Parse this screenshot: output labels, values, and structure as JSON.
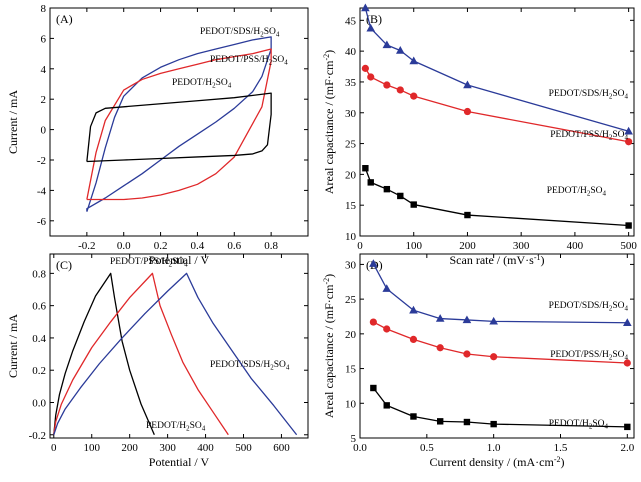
{
  "chart_data": [
    {
      "panel": "(A)",
      "type": "line",
      "xlabel": "Potential / V",
      "ylabel": "Current / mA",
      "xlim": [
        -0.4,
        1.0
      ],
      "ylim": [
        -7,
        8
      ],
      "xticks": [
        "-0.2",
        "0.0",
        "0.2",
        "0.4",
        "0.6",
        "0.8"
      ],
      "yticks": [
        "-6",
        "-4",
        "-2",
        "0",
        "2",
        "4",
        "6",
        "8"
      ],
      "series": [
        {
          "name": "PEDOT/SDS/H2SO4",
          "color": "#2b3b99",
          "x": [
            -0.2,
            -0.15,
            -0.1,
            -0.05,
            0.0,
            0.1,
            0.2,
            0.3,
            0.4,
            0.5,
            0.6,
            0.7,
            0.8,
            0.8,
            0.75,
            0.7,
            0.6,
            0.5,
            0.4,
            0.3,
            0.2,
            0.1,
            0.0,
            -0.1,
            -0.2,
            -0.2
          ],
          "y": [
            -5.4,
            -3.5,
            -1.2,
            0.8,
            2.2,
            3.4,
            4.1,
            4.6,
            5.0,
            5.3,
            5.6,
            5.9,
            6.1,
            5.3,
            3.5,
            2.5,
            1.4,
            0.5,
            -0.3,
            -1.1,
            -2.0,
            -2.9,
            -3.7,
            -4.5,
            -5.2,
            -5.4
          ]
        },
        {
          "name": "PEDOT/PSS/H2SO4",
          "color": "#e0282a",
          "x": [
            -0.2,
            -0.15,
            -0.1,
            0.0,
            0.1,
            0.2,
            0.3,
            0.4,
            0.5,
            0.6,
            0.7,
            0.8,
            0.8,
            0.75,
            0.7,
            0.6,
            0.5,
            0.4,
            0.3,
            0.2,
            0.1,
            0.0,
            -0.1,
            -0.2,
            -0.2
          ],
          "y": [
            -4.6,
            -1.5,
            0.6,
            2.6,
            3.3,
            3.7,
            4.0,
            4.3,
            4.6,
            4.8,
            5.0,
            5.3,
            4.5,
            1.5,
            0.4,
            -1.8,
            -2.9,
            -3.6,
            -4.0,
            -4.3,
            -4.5,
            -4.6,
            -4.6,
            -4.6,
            -4.6
          ],
          "label": "PEDOT/PSS/H2SO4"
        },
        {
          "name": "PEDOT/H2SO4",
          "color": "#000000",
          "x": [
            -0.2,
            -0.18,
            -0.15,
            -0.1,
            0.0,
            0.2,
            0.4,
            0.6,
            0.8,
            0.8,
            0.78,
            0.75,
            0.7,
            0.6,
            0.4,
            0.2,
            0.0,
            -0.2,
            -0.2
          ],
          "y": [
            -2.1,
            0.2,
            1.1,
            1.4,
            1.5,
            1.7,
            1.9,
            2.1,
            2.4,
            1.0,
            -1.0,
            -1.4,
            -1.6,
            -1.7,
            -1.8,
            -1.9,
            -2.0,
            -2.1,
            -2.1
          ]
        }
      ],
      "annotations": [
        "PEDOT/SDS/H",
        "2",
        "SO",
        "4",
        "PEDOT/PSS/H",
        "2",
        "SO",
        "4",
        "PEDOT/H",
        "2",
        "SO",
        "4"
      ]
    },
    {
      "panel": "(B)",
      "type": "line",
      "xlabel": "Scan rate / (mV·s",
      "xlabel_sup": "-1",
      "xlabel_end": ")",
      "ylabel": "Areal capacitance / (mF·cm",
      "ylabel_sup": "-2",
      "ylabel_end": ")",
      "xlim": [
        0,
        510
      ],
      "ylim": [
        10,
        47
      ],
      "xticks": [
        "0",
        "100",
        "200",
        "300",
        "400",
        "500"
      ],
      "yticks": [
        "10",
        "15",
        "20",
        "25",
        "30",
        "35",
        "40",
        "45"
      ],
      "x": [
        10,
        20,
        50,
        75,
        100,
        200,
        500
      ],
      "series": [
        {
          "name": "PEDOT/SDS/H2SO4",
          "color": "#2b3b99",
          "marker": "triangle",
          "values": [
            47.0,
            43.7,
            41.0,
            40.1,
            38.4,
            34.5,
            27.0
          ]
        },
        {
          "name": "PEDOT/PSS/H2SO4",
          "color": "#e0282a",
          "marker": "circle",
          "values": [
            37.2,
            35.8,
            34.5,
            33.7,
            32.7,
            30.2,
            25.3
          ]
        },
        {
          "name": "PEDOT/H2SO4",
          "color": "#000000",
          "marker": "square",
          "values": [
            21.0,
            18.7,
            17.6,
            16.5,
            15.1,
            13.4,
            11.7
          ]
        }
      ],
      "annotations": [
        "PEDOT/SDS/H",
        "2",
        "SO",
        "4",
        "PEDOT/PSS/H",
        "2",
        "SO",
        "4",
        "PEDOT/H",
        "2",
        "SO",
        "4"
      ]
    },
    {
      "panel": "(C)",
      "type": "line",
      "xlabel": "Potential / V",
      "ylabel": "Current / mA",
      "xlim": [
        -10,
        670
      ],
      "ylim": [
        -0.22,
        0.92
      ],
      "xticks": [
        "0",
        "100",
        "200",
        "300",
        "400",
        "500",
        "600"
      ],
      "yticks": [
        "-0.2",
        "0.0",
        "0.2",
        "0.4",
        "0.6",
        "0.8"
      ],
      "series": [
        {
          "name": "PEDOT/H2SO4",
          "color": "#000000",
          "x": [
            0,
            5,
            15,
            30,
            50,
            80,
            110,
            150,
            160,
            180,
            200,
            230,
            265
          ],
          "y": [
            -0.2,
            -0.08,
            0.05,
            0.18,
            0.32,
            0.5,
            0.66,
            0.8,
            0.65,
            0.38,
            0.2,
            -0.01,
            -0.2
          ]
        },
        {
          "name": "PEDOT/PSS/H2SO4",
          "color": "#e0282a",
          "x": [
            0,
            5,
            20,
            50,
            100,
            150,
            200,
            260,
            280,
            310,
            340,
            380,
            420,
            460
          ],
          "y": [
            -0.2,
            -0.12,
            -0.01,
            0.14,
            0.34,
            0.5,
            0.65,
            0.8,
            0.6,
            0.42,
            0.25,
            0.08,
            -0.06,
            -0.2
          ]
        },
        {
          "name": "PEDOT/SDS/H2SO4",
          "color": "#2b3b99",
          "x": [
            0,
            10,
            30,
            70,
            120,
            180,
            240,
            300,
            350,
            380,
            420,
            470,
            520,
            580,
            640
          ],
          "y": [
            -0.2,
            -0.13,
            -0.04,
            0.09,
            0.24,
            0.4,
            0.55,
            0.69,
            0.8,
            0.65,
            0.49,
            0.32,
            0.15,
            -0.02,
            -0.2
          ]
        }
      ],
      "annotations": [
        "PEDOT/PSS/H",
        "2",
        "SO",
        "4",
        "PEDOT/SDS/H",
        "2",
        "SO",
        "4",
        "PEDOT/H",
        "2",
        "SO",
        "4"
      ]
    },
    {
      "panel": "(D)",
      "type": "line",
      "xlabel": "Current density / (mA·cm",
      "xlabel_sup": "-2",
      "xlabel_end": ")",
      "ylabel": "Areal capacitance / (mF·cm",
      "ylabel_sup": "-2",
      "ylabel_end": ")",
      "xlim": [
        0.0,
        2.05
      ],
      "ylim": [
        5,
        31.5
      ],
      "xticks": [
        "0.0",
        "0.5",
        "1.0",
        "1.5",
        "2.0"
      ],
      "yticks": [
        "5",
        "10",
        "15",
        "20",
        "25",
        "30"
      ],
      "x": [
        0.1,
        0.2,
        0.4,
        0.6,
        0.8,
        1.0,
        2.0
      ],
      "series": [
        {
          "name": "PEDOT/SDS/H2SO4",
          "color": "#2b3b99",
          "marker": "triangle",
          "values": [
            30.1,
            26.5,
            23.4,
            22.2,
            22.0,
            21.8,
            21.6
          ]
        },
        {
          "name": "PEDOT/PSS/H2SO4",
          "color": "#e0282a",
          "marker": "circle",
          "values": [
            21.7,
            20.7,
            19.2,
            18.0,
            17.1,
            16.7,
            15.8
          ]
        },
        {
          "name": "PEDOT/H2SO4",
          "color": "#000000",
          "marker": "square",
          "values": [
            12.2,
            9.7,
            8.1,
            7.4,
            7.3,
            7.0,
            6.6
          ]
        }
      ],
      "annotations": [
        "PEDOT/SDS/H",
        "2",
        "SO",
        "4",
        "PEDOT/PSS/H",
        "2",
        "SO",
        "4",
        "PEDOT/H",
        "2",
        "SO",
        "4"
      ]
    }
  ]
}
